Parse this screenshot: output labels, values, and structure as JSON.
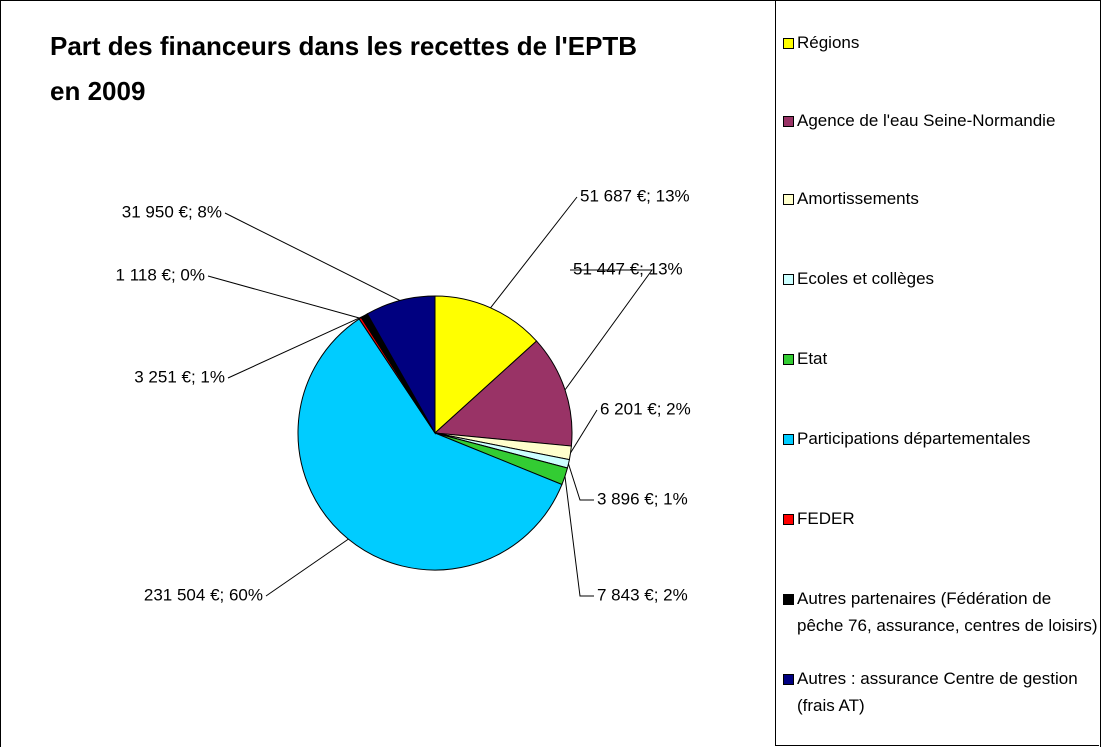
{
  "chart_data": {
    "type": "pie",
    "title": "Part des financeurs dans les recettes de l'EPTB en 2009",
    "categories": [
      "Régions",
      "Agence de l'eau Seine-Normandie",
      "Amortissements",
      "Ecoles et collèges",
      "Etat",
      "Participations départementales",
      "FEDER",
      "Autres partenaires (Fédération de pêche 76, assurance, centres de loisirs)",
      "Autres : assurance Centre de gestion (frais AT)"
    ],
    "values": [
      51687,
      51447,
      6201,
      3896,
      7843,
      231504,
      1118,
      3251,
      31950
    ],
    "value_labels": [
      "51 687 €; 13%",
      "51 447 €; 13%",
      "6 201 €; 2%",
      "3 896 €; 1%",
      "7 843 €; 2%",
      "231 504 €; 60%",
      "1 118 €; 0%",
      "3 251 €; 1%",
      "31 950 €; 8%"
    ],
    "colors": [
      "#ffff00",
      "#993366",
      "#ffffcc",
      "#ccffff",
      "#33cc33",
      "#00ccff",
      "#ff0000",
      "#000000",
      "#000080"
    ],
    "legend": "right"
  }
}
